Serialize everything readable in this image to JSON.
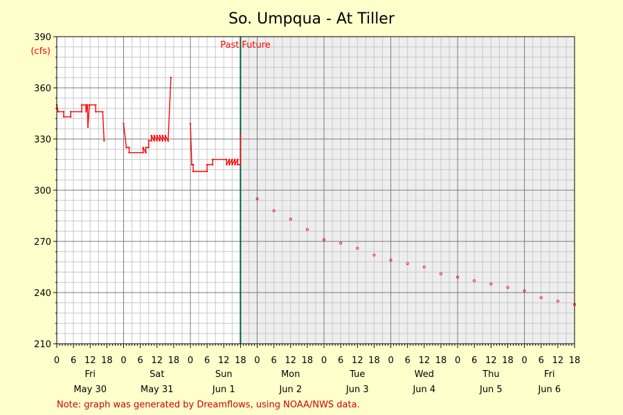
{
  "chart_data": {
    "type": "line",
    "title": "So. Umpqua - At Tiller",
    "y_unit": "(cfs)",
    "ylim": [
      210,
      390
    ],
    "y_ticks": [
      210,
      240,
      270,
      300,
      330,
      360,
      390
    ],
    "x_range_hours": [
      0,
      186
    ],
    "now_hour": 66,
    "past_label": "Past",
    "future_label": "Future",
    "hour_labels": [
      "0",
      "6",
      "12",
      "18",
      "0",
      "6",
      "12",
      "18",
      "0",
      "6",
      "12",
      "18",
      "0",
      "6",
      "12",
      "18",
      "0",
      "6",
      "12",
      "18",
      "0",
      "6",
      "12",
      "18",
      "0",
      "6",
      "12",
      "18",
      "0",
      "6",
      "12",
      "18"
    ],
    "days": [
      {
        "day": "Fri",
        "date": "May 30"
      },
      {
        "day": "Sat",
        "date": "May 31"
      },
      {
        "day": "Sun",
        "date": "Jun 1"
      },
      {
        "day": "Mon",
        "date": "Jun 2"
      },
      {
        "day": "Tue",
        "date": "Jun 3"
      },
      {
        "day": "Wed",
        "date": "Jun 4"
      },
      {
        "day": "Thu",
        "date": "Jun 5"
      },
      {
        "day": "Fri",
        "date": "Jun 6"
      }
    ],
    "series": [
      {
        "color": "#ff0000",
        "segments": [
          [
            [
              0,
              350
            ],
            [
              0.5,
              346
            ],
            [
              2.5,
              346
            ],
            [
              2.5,
              343
            ],
            [
              5,
              343
            ],
            [
              5,
              346
            ],
            [
              9,
              346
            ],
            [
              9,
              350
            ],
            [
              10.5,
              350
            ],
            [
              10.5,
              346
            ],
            [
              11,
              350
            ],
            [
              11.2,
              337
            ],
            [
              11.7,
              350
            ],
            [
              14,
              350
            ],
            [
              14,
              346
            ],
            [
              16.5,
              346
            ],
            [
              17,
              329
            ]
          ],
          [
            [
              24,
              339
            ],
            [
              25,
              325
            ],
            [
              26,
              325
            ],
            [
              26,
              322
            ],
            [
              31,
              322
            ],
            [
              31,
              325
            ],
            [
              32,
              322
            ],
            [
              32,
              325
            ],
            [
              33,
              325
            ],
            [
              33,
              329
            ],
            [
              34,
              329
            ],
            [
              34,
              332
            ],
            [
              35,
              329
            ],
            [
              35,
              332
            ],
            [
              36,
              329
            ],
            [
              36,
              332
            ],
            [
              37,
              329
            ],
            [
              37,
              332
            ],
            [
              38,
              329
            ],
            [
              38,
              332
            ],
            [
              39,
              329
            ],
            [
              39,
              332
            ],
            [
              40,
              329
            ],
            [
              41,
              366
            ]
          ],
          [
            [
              48,
              339
            ],
            [
              48.5,
              315
            ],
            [
              49,
              315
            ],
            [
              49,
              311
            ],
            [
              54,
              311
            ],
            [
              54,
              315
            ],
            [
              56,
              315
            ],
            [
              56,
              318
            ],
            [
              61,
              318
            ],
            [
              61,
              315
            ],
            [
              62,
              318
            ],
            [
              62,
              315
            ],
            [
              63,
              318
            ],
            [
              63,
              315
            ],
            [
              64,
              318
            ],
            [
              64,
              315
            ],
            [
              65,
              318
            ],
            [
              65,
              315
            ],
            [
              66,
              315
            ],
            [
              66,
              333
            ]
          ]
        ]
      },
      {
        "color": "#ff0000",
        "points": [
          [
            72,
            295
          ],
          [
            78,
            288
          ],
          [
            84,
            283
          ],
          [
            90,
            277
          ],
          [
            96,
            271
          ],
          [
            102,
            269
          ],
          [
            108,
            266
          ],
          [
            114,
            262
          ],
          [
            120,
            259
          ],
          [
            126,
            257
          ],
          [
            132,
            255
          ],
          [
            138,
            251
          ],
          [
            144,
            249
          ],
          [
            150,
            247
          ],
          [
            156,
            245
          ],
          [
            162,
            243
          ],
          [
            168,
            241
          ],
          [
            174,
            237
          ],
          [
            180,
            235
          ],
          [
            186,
            233
          ]
        ]
      }
    ]
  },
  "note": "Note: graph was generated by Dreamflows, using NOAA/NWS data."
}
